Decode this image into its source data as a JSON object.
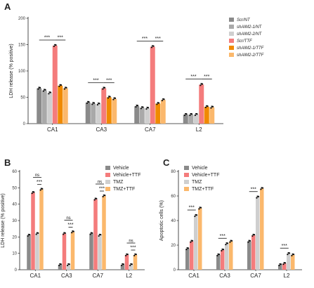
{
  "panels": {
    "A": {
      "letter": "A"
    },
    "B": {
      "letter": "B"
    },
    "C": {
      "letter": "C"
    }
  },
  "chart_data": [
    {
      "id": "A",
      "type": "bar",
      "ylabel": "LDH release (% positive)",
      "ylim": [
        0,
        200
      ],
      "yticks": [
        0,
        50,
        100,
        150,
        200
      ],
      "categories": [
        "CA1",
        "CA3",
        "CA7",
        "L2"
      ],
      "legend_position": "top-right",
      "series": [
        {
          "name": "Scr/NT",
          "color": "#8a8a8a",
          "values": [
            67,
            40,
            33,
            17
          ]
        },
        {
          "name": "shAIM2-1/NT",
          "color": "#a9a9a9",
          "values": [
            63,
            38,
            30,
            17
          ]
        },
        {
          "name": "shAIM2-2/NT",
          "color": "#cfcfcf",
          "values": [
            58,
            37,
            29,
            17
          ]
        },
        {
          "name": "Scr/TTF",
          "color": "#f47c7c",
          "values": [
            148,
            67,
            146,
            74
          ]
        },
        {
          "name": "shAIM2-1/TTF",
          "color": "#f08a00",
          "values": [
            72,
            50,
            38,
            32
          ]
        },
        {
          "name": "shAIM2-2/TTF",
          "color": "#fbb86c",
          "values": [
            67,
            47,
            45,
            31
          ]
        }
      ],
      "significance": [
        {
          "category": "CA1",
          "from": 0,
          "to": 3,
          "label": "***"
        },
        {
          "category": "CA1",
          "from": 3,
          "to": 5,
          "label": "***"
        },
        {
          "category": "CA3",
          "from": 0,
          "to": 3,
          "label": "***"
        },
        {
          "category": "CA3",
          "from": 3,
          "to": 5,
          "label": "***"
        },
        {
          "category": "CA7",
          "from": 0,
          "to": 3,
          "label": "***"
        },
        {
          "category": "CA7",
          "from": 3,
          "to": 5,
          "label": "***"
        },
        {
          "category": "L2",
          "from": 0,
          "to": 3,
          "label": "***"
        },
        {
          "category": "L2",
          "from": 3,
          "to": 5,
          "label": "***"
        }
      ]
    },
    {
      "id": "B",
      "type": "bar",
      "ylabel": "LDH release (% positive)",
      "ylim": [
        0,
        60
      ],
      "yticks": [
        0,
        10,
        20,
        30,
        40,
        50,
        60
      ],
      "categories": [
        "CA1",
        "CA3",
        "CA7",
        "L2"
      ],
      "legend_position": "top-right",
      "series": [
        {
          "name": "Vehicle",
          "color": "#8a8a8a",
          "values": [
            21,
            3,
            22,
            3
          ]
        },
        {
          "name": "Vehicle+TTF",
          "color": "#f47c7c",
          "values": [
            47,
            22,
            43,
            9
          ]
        },
        {
          "name": "TMZ",
          "color": "#cfcfcf",
          "values": [
            22,
            3,
            21,
            3
          ]
        },
        {
          "name": "TMZ+TTF",
          "color": "#fbb86c",
          "values": [
            49,
            23,
            45,
            9
          ]
        }
      ],
      "significance": [
        {
          "category": "CA1",
          "from": 1,
          "to": 3,
          "label": "ns"
        },
        {
          "category": "CA1",
          "from": 2,
          "to": 3,
          "label": "***"
        },
        {
          "category": "CA3",
          "from": 1,
          "to": 3,
          "label": "ns"
        },
        {
          "category": "CA3",
          "from": 2,
          "to": 3,
          "label": "***"
        },
        {
          "category": "CA7",
          "from": 1,
          "to": 3,
          "label": "ns"
        },
        {
          "category": "CA7",
          "from": 2,
          "to": 3,
          "label": "***"
        },
        {
          "category": "L2",
          "from": 1,
          "to": 3,
          "label": "ns"
        },
        {
          "category": "L2",
          "from": 2,
          "to": 3,
          "label": "***"
        }
      ]
    },
    {
      "id": "C",
      "type": "bar",
      "ylabel": "Apoptotic cells (%)",
      "ylim": [
        0,
        80
      ],
      "yticks": [
        0,
        20,
        40,
        60,
        80
      ],
      "categories": [
        "CA1",
        "CA3",
        "CA7",
        "L2"
      ],
      "legend_position": "top-left",
      "series": [
        {
          "name": "Vehicle",
          "color": "#8a8a8a",
          "values": [
            17,
            12,
            23,
            4
          ]
        },
        {
          "name": "Vehicle+TTF",
          "color": "#f47c7c",
          "values": [
            23,
            16,
            28,
            5
          ]
        },
        {
          "name": "TMZ",
          "color": "#cfcfcf",
          "values": [
            44,
            21,
            59,
            13
          ]
        },
        {
          "name": "TMZ+TTF",
          "color": "#fbb86c",
          "values": [
            50,
            23,
            66,
            12
          ]
        }
      ],
      "significance": [
        {
          "category": "CA1",
          "from": 0,
          "to": 2,
          "label": "***"
        },
        {
          "category": "CA3",
          "from": 0,
          "to": 2,
          "label": "***"
        },
        {
          "category": "CA7",
          "from": 0,
          "to": 2,
          "label": "***"
        },
        {
          "category": "L2",
          "from": 0,
          "to": 2,
          "label": "***"
        }
      ]
    }
  ]
}
